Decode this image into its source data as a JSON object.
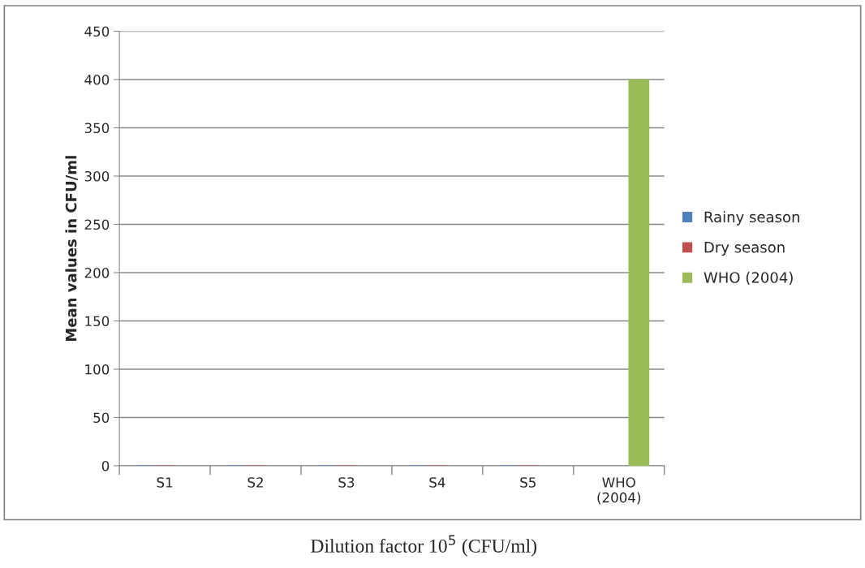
{
  "chart_data": {
    "type": "bar",
    "categories": [
      "S1",
      "S2",
      "S3",
      "S4",
      "S5",
      "WHO (2004)"
    ],
    "series": [
      {
        "name": "Rainy season",
        "color": "#4f81bd",
        "values": [
          0,
          0,
          0,
          0,
          0,
          null
        ]
      },
      {
        "name": "Dry season",
        "color": "#c0504d",
        "values": [
          0,
          0,
          0,
          0,
          0,
          null
        ]
      },
      {
        "name": "WHO (2004)",
        "color": "#9bbb59",
        "values": [
          null,
          null,
          null,
          null,
          null,
          400
        ]
      }
    ],
    "ylabel": "Mean values in CFU/ml",
    "xlabel": "Dilution factor 10$^{5}$ (CFU/ml)",
    "ylim": [
      0,
      450
    ],
    "yticks": [
      0,
      50,
      100,
      150,
      200,
      250,
      300,
      350,
      400,
      450
    ],
    "grid": "y",
    "legend": "right"
  }
}
